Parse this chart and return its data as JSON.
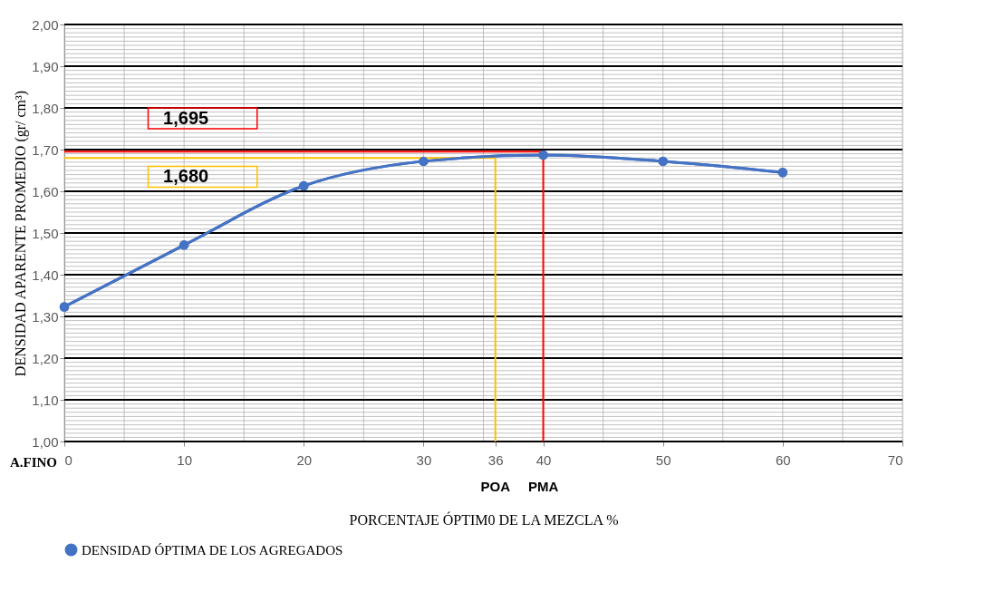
{
  "chart_data": {
    "type": "line",
    "xlabel": "PORCENTAJE ÓPTIM0 DE LA MEZCLA %",
    "ylabel": "DENSIDAD  APARENTE PROMEDIO  (gr/ cm³)",
    "x": [
      0,
      10,
      20,
      30,
      40,
      50,
      60
    ],
    "series": [
      {
        "name": "DENSIDAD ÓPTIMA DE LOS  AGREGADOS",
        "color": "#4472c4",
        "values": [
          1.323,
          1.471,
          1.613,
          1.672,
          1.687,
          1.672,
          1.645
        ]
      }
    ],
    "xlim": [
      0,
      70
    ],
    "xticks": [
      0,
      10,
      20,
      30,
      36,
      40,
      50,
      60,
      70
    ],
    "ylim": [
      1.0,
      2.0
    ],
    "yticks": [
      {
        "value": 1.0,
        "label": "1,00"
      },
      {
        "value": 1.1,
        "label": "1,10"
      },
      {
        "value": 1.2,
        "label": "1,20"
      },
      {
        "value": 1.3,
        "label": "1,30"
      },
      {
        "value": 1.4,
        "label": "1,40"
      },
      {
        "value": 1.5,
        "label": "1,50"
      },
      {
        "value": 1.6,
        "label": "1,60"
      },
      {
        "value": 1.7,
        "label": "1,70"
      },
      {
        "value": 1.8,
        "label": "1,80"
      },
      {
        "value": 1.9,
        "label": "1,90"
      },
      {
        "value": 2.0,
        "label": "2,00"
      }
    ],
    "ref_lines": [
      {
        "axis": "y",
        "value": 1.695,
        "label": "1,695",
        "color": "#ff0000"
      },
      {
        "axis": "y",
        "value": 1.68,
        "label": "1,680",
        "color": "#ffc000"
      },
      {
        "axis": "x",
        "value": 40,
        "label": "PMA",
        "color": "#ff0000"
      },
      {
        "axis": "x",
        "value": 36,
        "label": "POA",
        "color": "#ffc000"
      }
    ],
    "annotations": [
      "A.FINO"
    ],
    "grid": true,
    "legend": "bottom",
    "marker": "circle",
    "line_style": "solid"
  }
}
